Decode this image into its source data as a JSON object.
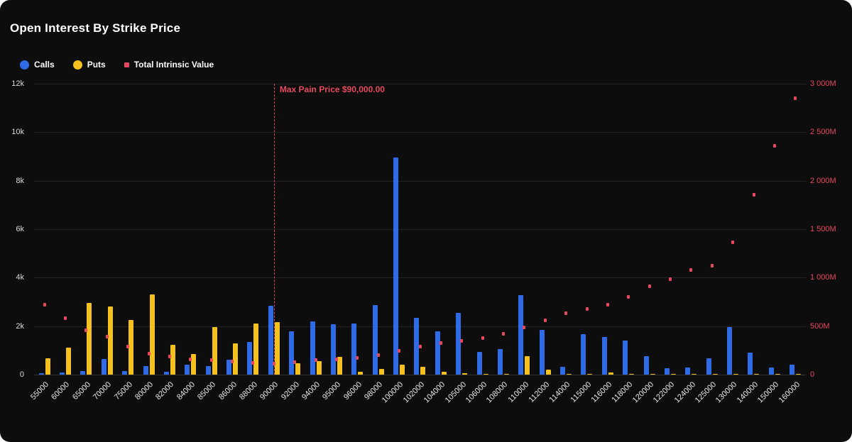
{
  "title": "Open Interest By Strike Price",
  "legend": [
    {
      "label": "Calls",
      "color": "#2f6be6",
      "shape": "circle"
    },
    {
      "label": "Puts",
      "color": "#f5c11e",
      "shape": "circle"
    },
    {
      "label": "Total Intrinsic Value",
      "color": "#e8485f",
      "shape": "square"
    }
  ],
  "max_pain": {
    "label": "Max Pain Price $90,000.00",
    "category": "90000",
    "color": "#e8485f"
  },
  "axes": {
    "left_ticks": [
      "12k",
      "10k",
      "8k",
      "6k",
      "4k",
      "2k",
      "0"
    ],
    "right_ticks": [
      "3 000M",
      "2 500M",
      "2 000M",
      "1 500M",
      "1 000M",
      "500M",
      "0"
    ]
  },
  "colors": {
    "background": "#0d0d0d",
    "grid": "#232323",
    "axis_text": "#dcdcdc",
    "right_axis_text": "#e8485f",
    "calls": "#2f6be6",
    "puts": "#f5c11e",
    "intrinsic": "#e8485f"
  },
  "chart_data": {
    "type": "bar",
    "title": "Open Interest By Strike Price",
    "categories": [
      "55000",
      "60000",
      "65000",
      "70000",
      "75000",
      "80000",
      "82000",
      "84000",
      "85000",
      "86000",
      "88000",
      "90000",
      "92000",
      "94000",
      "95000",
      "96000",
      "98000",
      "100000",
      "102000",
      "104000",
      "105000",
      "106000",
      "108000",
      "110000",
      "112000",
      "114000",
      "115000",
      "116000",
      "118000",
      "120000",
      "122000",
      "124000",
      "125000",
      "130000",
      "140000",
      "150000",
      "160000"
    ],
    "series": [
      {
        "name": "Calls",
        "render": "bar",
        "axis": "left",
        "color": "#2f6be6",
        "values": [
          50,
          80,
          150,
          650,
          150,
          350,
          120,
          420,
          350,
          620,
          1350,
          2850,
          1780,
          2200,
          2080,
          2120,
          2870,
          8950,
          2350,
          1800,
          2550,
          950,
          1050,
          3270,
          1850,
          320,
          1670,
          1560,
          1400,
          760,
          260,
          280,
          660,
          1950,
          920,
          280,
          420
        ]
      },
      {
        "name": "Puts",
        "render": "bar",
        "axis": "left",
        "color": "#f5c11e",
        "values": [
          660,
          1120,
          2950,
          2820,
          2250,
          3300,
          1230,
          860,
          1970,
          1280,
          2100,
          2160,
          470,
          560,
          720,
          120,
          230,
          420,
          310,
          110,
          60,
          30,
          30,
          760,
          210,
          40,
          30,
          80,
          30,
          40,
          20,
          20,
          30,
          40,
          30,
          20,
          20
        ]
      },
      {
        "name": "Total Intrinsic Value",
        "render": "scatter",
        "axis": "right",
        "color": "#e8485f",
        "values": [
          700,
          565,
          440,
          370,
          270,
          195,
          165,
          140,
          130,
          115,
          105,
          95,
          110,
          130,
          140,
          155,
          185,
          230,
          270,
          310,
          330,
          355,
          405,
          465,
          545,
          615,
          655,
          700,
          780,
          890,
          965,
          1060,
          1105,
          1350,
          1840,
          2345,
          2835
        ]
      }
    ],
    "left_ylim": [
      0,
      12000
    ],
    "right_ylim": [
      0,
      3000
    ],
    "legend_position": "top-left",
    "grid": true,
    "annotation": {
      "label": "Max Pain Price $90,000.00",
      "x": "90000"
    }
  }
}
